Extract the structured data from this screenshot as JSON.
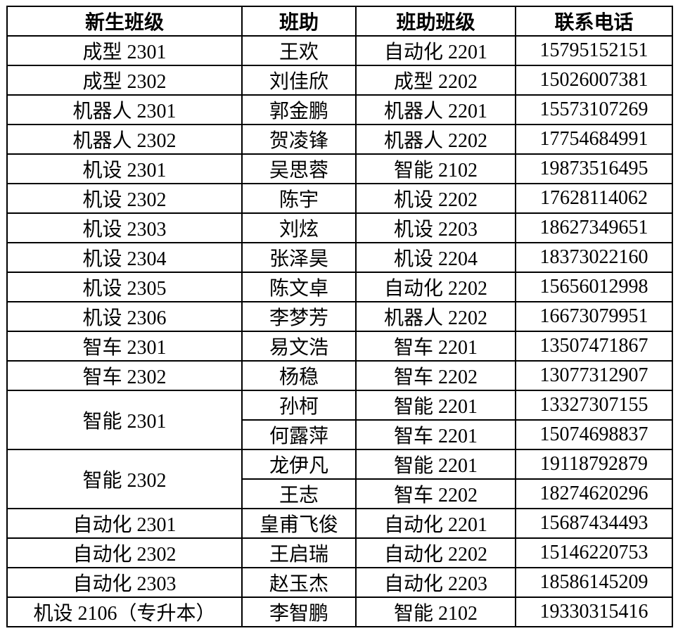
{
  "table": {
    "headers": [
      "新生班级",
      "班助",
      "班助班级",
      "联系电话"
    ],
    "groups": [
      {
        "new_class": "成型 2301",
        "entries": [
          {
            "name": "王欢",
            "assistant_class": "自动化 2201",
            "phone": "15795152151"
          }
        ]
      },
      {
        "new_class": "成型 2302",
        "entries": [
          {
            "name": "刘佳欣",
            "assistant_class": "成型 2202",
            "phone": "15026007381"
          }
        ]
      },
      {
        "new_class": "机器人 2301",
        "entries": [
          {
            "name": "郭金鹏",
            "assistant_class": "机器人 2201",
            "phone": "15573107269"
          }
        ]
      },
      {
        "new_class": "机器人 2302",
        "entries": [
          {
            "name": "贺凌锋",
            "assistant_class": "机器人 2202",
            "phone": "17754684991"
          }
        ]
      },
      {
        "new_class": "机设 2301",
        "entries": [
          {
            "name": "吴思蓉",
            "assistant_class": "智能 2102",
            "phone": "19873516495"
          }
        ]
      },
      {
        "new_class": "机设 2302",
        "entries": [
          {
            "name": "陈宇",
            "assistant_class": "机设 2202",
            "phone": "17628114062"
          }
        ]
      },
      {
        "new_class": "机设 2303",
        "entries": [
          {
            "name": "刘炫",
            "assistant_class": "机设 2203",
            "phone": "18627349651"
          }
        ]
      },
      {
        "new_class": "机设 2304",
        "entries": [
          {
            "name": "张泽昊",
            "assistant_class": "机设 2204",
            "phone": "18373022160"
          }
        ]
      },
      {
        "new_class": "机设 2305",
        "entries": [
          {
            "name": "陈文卓",
            "assistant_class": "自动化 2202",
            "phone": "15656012998"
          }
        ]
      },
      {
        "new_class": "机设 2306",
        "entries": [
          {
            "name": "李梦芳",
            "assistant_class": "机器人 2202",
            "phone": "16673079951"
          }
        ]
      },
      {
        "new_class": "智车 2301",
        "entries": [
          {
            "name": "易文浩",
            "assistant_class": "智车 2201",
            "phone": "13507471867"
          }
        ]
      },
      {
        "new_class": "智车 2302",
        "entries": [
          {
            "name": "杨稳",
            "assistant_class": "智车 2202",
            "phone": "13077312907"
          }
        ]
      },
      {
        "new_class": "智能 2301",
        "entries": [
          {
            "name": "孙柯",
            "assistant_class": "智能 2201",
            "phone": "13327307155"
          },
          {
            "name": "何露萍",
            "assistant_class": "智车 2201",
            "phone": "15074698837"
          }
        ]
      },
      {
        "new_class": "智能 2302",
        "entries": [
          {
            "name": "龙伊凡",
            "assistant_class": "智能 2201",
            "phone": "19118792879"
          },
          {
            "name": "王志",
            "assistant_class": "智车 2202",
            "phone": "18274620296"
          }
        ]
      },
      {
        "new_class": "自动化 2301",
        "entries": [
          {
            "name": "皇甫飞俊",
            "assistant_class": "自动化 2201",
            "phone": "15687434493"
          }
        ]
      },
      {
        "new_class": "自动化 2302",
        "entries": [
          {
            "name": "王启瑞",
            "assistant_class": "自动化 2202",
            "phone": "15146220753"
          }
        ]
      },
      {
        "new_class": "自动化 2303",
        "entries": [
          {
            "name": "赵玉杰",
            "assistant_class": "自动化 2203",
            "phone": "18586145209"
          }
        ]
      },
      {
        "new_class": "机设 2106（专升本）",
        "entries": [
          {
            "name": "李智鹏",
            "assistant_class": "智能 2102",
            "phone": "19330315416"
          }
        ]
      }
    ]
  }
}
